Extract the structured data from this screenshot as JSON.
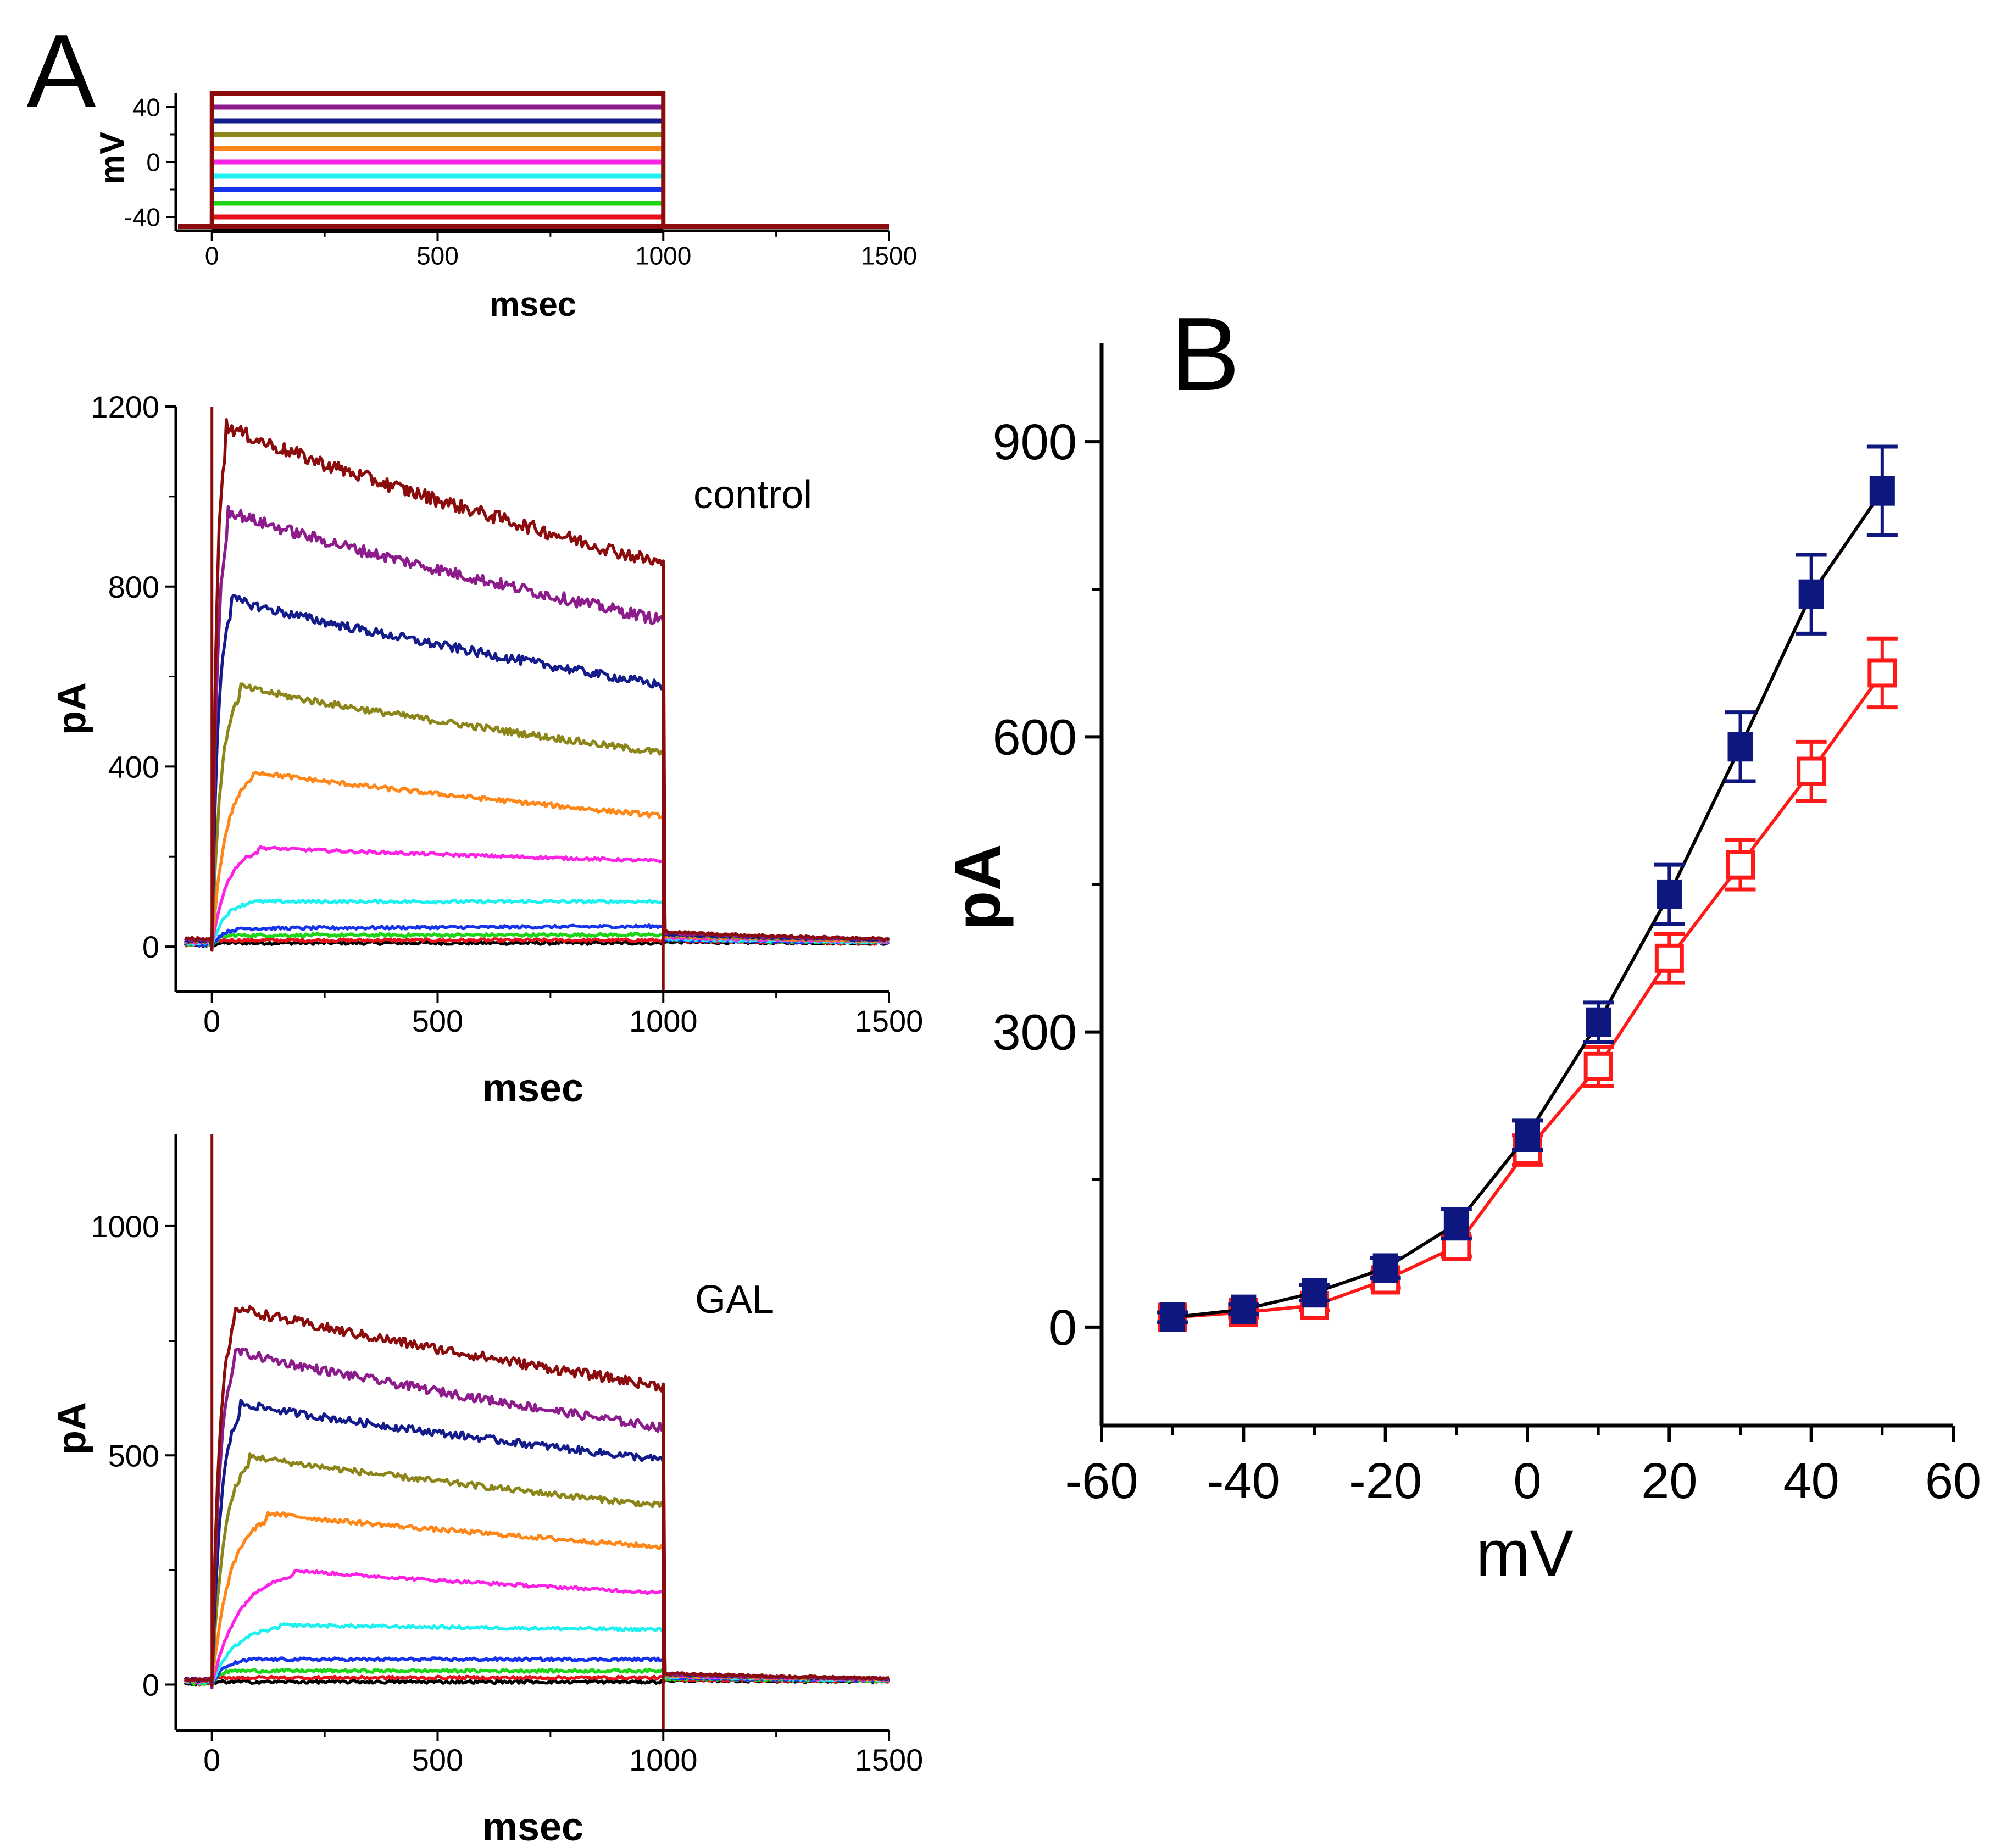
{
  "panel_labels": {
    "a": "A",
    "b": "B"
  },
  "colors": {
    "m50": "#000000",
    "m40": "#e6111d",
    "m30": "#1bd516",
    "m20": "#1433ea",
    "m10": "#1ff1f1",
    "p0": "#fb23e4",
    "p10": "#ff8719",
    "p20": "#8c861a",
    "p30": "#141b8a",
    "p40": "#8c1c8b",
    "p50": "#8b0c0c",
    "control": "#0e1680",
    "gal": "#ff1a1a",
    "control_line": "#000000"
  },
  "chart_data": [
    {
      "id": "protocol",
      "type": "line",
      "title": "",
      "xlabel": "msec",
      "ylabel": "mV",
      "xlim": [
        -80,
        1500
      ],
      "ylim": [
        -50,
        50
      ],
      "xticks": [
        0,
        500,
        1000,
        1500
      ],
      "yticks": [
        -40,
        0,
        40
      ],
      "holding_mV": -50,
      "step_start_ms": 0,
      "step_end_ms": 1000,
      "steps_mV": [
        -50,
        -40,
        -30,
        -20,
        -10,
        0,
        10,
        20,
        30,
        40,
        50
      ]
    },
    {
      "id": "control-traces",
      "type": "line",
      "title": "",
      "annotation": "control",
      "xlabel": "msec",
      "ylabel": "pA",
      "xlim": [
        -80,
        1500
      ],
      "ylim": [
        -100,
        1200
      ],
      "xticks": [
        0,
        500,
        1000,
        1500
      ],
      "yticks": [
        0,
        400,
        800,
        1200
      ],
      "step_start_ms": 0,
      "step_end_ms": 1000,
      "series": [
        {
          "name": "-50 mV",
          "color": "m50",
          "peak_ms": 20,
          "peak": 8,
          "end": 8,
          "tail": 5
        },
        {
          "name": "-40 mV",
          "color": "m40",
          "peak_ms": 20,
          "peak": 14,
          "end": 14,
          "tail": 8
        },
        {
          "name": "-30 mV",
          "color": "m30",
          "peak_ms": 40,
          "peak": 25,
          "end": 26,
          "tail": 10
        },
        {
          "name": "-20 mV",
          "color": "m20",
          "peak_ms": 60,
          "peak": 40,
          "end": 45,
          "tail": 10
        },
        {
          "name": "-10 mV",
          "color": "m10",
          "peak_ms": 80,
          "peak": 100,
          "end": 100,
          "tail": 12
        },
        {
          "name": "0 mV",
          "color": "p0",
          "peak_ms": 100,
          "peak": 220,
          "end": 190,
          "tail": 15
        },
        {
          "name": "10 mV",
          "color": "p10",
          "peak_ms": 90,
          "peak": 390,
          "end": 290,
          "tail": 18
        },
        {
          "name": "20 mV",
          "color": "p20",
          "peak_ms": 60,
          "peak": 580,
          "end": 430,
          "tail": 20
        },
        {
          "name": "30 mV",
          "color": "p30",
          "peak_ms": 40,
          "peak": 775,
          "end": 580,
          "tail": 22
        },
        {
          "name": "40 mV",
          "color": "p40",
          "peak_ms": 35,
          "peak": 970,
          "end": 725,
          "tail": 25
        },
        {
          "name": "50 mV",
          "color": "p50",
          "peak_ms": 30,
          "peak": 1160,
          "end": 850,
          "tail": 28
        }
      ]
    },
    {
      "id": "gal-traces",
      "type": "line",
      "title": "",
      "annotation": "GAL",
      "xlabel": "msec",
      "ylabel": "pA",
      "xlim": [
        -80,
        1500
      ],
      "ylim": [
        -100,
        1200
      ],
      "xticks": [
        0,
        500,
        1000,
        1500
      ],
      "yticks": [
        0,
        500,
        1000
      ],
      "step_start_ms": 0,
      "step_end_ms": 1000,
      "series": [
        {
          "name": "-50 mV",
          "color": "m50",
          "peak_ms": 20,
          "peak": 6,
          "end": 6,
          "tail": 4
        },
        {
          "name": "-40 mV",
          "color": "m40",
          "peak_ms": 20,
          "peak": 15,
          "end": 15,
          "tail": 6
        },
        {
          "name": "-30 mV",
          "color": "m30",
          "peak_ms": 40,
          "peak": 30,
          "end": 30,
          "tail": 8
        },
        {
          "name": "-20 mV",
          "color": "m20",
          "peak_ms": 80,
          "peak": 55,
          "end": 55,
          "tail": 10
        },
        {
          "name": "-10 mV",
          "color": "m10",
          "peak_ms": 150,
          "peak": 130,
          "end": 120,
          "tail": 12
        },
        {
          "name": "0 mV",
          "color": "p0",
          "peak_ms": 180,
          "peak": 250,
          "end": 200,
          "tail": 14
        },
        {
          "name": "10 mV",
          "color": "p10",
          "peak_ms": 120,
          "peak": 375,
          "end": 300,
          "tail": 15
        },
        {
          "name": "20 mV",
          "color": "p20",
          "peak_ms": 80,
          "peak": 500,
          "end": 390,
          "tail": 16
        },
        {
          "name": "30 mV",
          "color": "p30",
          "peak_ms": 60,
          "peak": 615,
          "end": 490,
          "tail": 17
        },
        {
          "name": "40 mV",
          "color": "p40",
          "peak_ms": 50,
          "peak": 730,
          "end": 560,
          "tail": 18
        },
        {
          "name": "50 mV",
          "color": "p50",
          "peak_ms": 50,
          "peak": 825,
          "end": 650,
          "tail": 20
        }
      ]
    },
    {
      "id": "iv-curve",
      "type": "line",
      "title": "",
      "xlabel": "mV",
      "ylabel": "pA",
      "xlim": [
        -60,
        60
      ],
      "ylim": [
        -100,
        1000
      ],
      "xticks": [
        -60,
        -40,
        -20,
        0,
        20,
        40,
        60
      ],
      "xtick_labels": [
        "-60",
        "-40",
        "-20",
        "0",
        "20",
        "40",
        "60"
      ],
      "yticks": [
        0,
        300,
        600,
        900
      ],
      "ytick_labels": [
        "0",
        "300",
        "600",
        "900"
      ],
      "x": [
        -50,
        -40,
        -30,
        -20,
        -10,
        0,
        10,
        20,
        30,
        40,
        50
      ],
      "series": [
        {
          "name": "control",
          "marker": "filled-square",
          "color": "control",
          "line_color": "control_line",
          "values": [
            10,
            18,
            35,
            60,
            105,
            195,
            310,
            440,
            590,
            745,
            850
          ],
          "errors": [
            5,
            5,
            8,
            10,
            15,
            15,
            20,
            30,
            35,
            40,
            45
          ]
        },
        {
          "name": "GAL",
          "marker": "open-square",
          "color": "gal",
          "line_color": "gal",
          "values": [
            10,
            15,
            22,
            48,
            82,
            180,
            265,
            375,
            470,
            565,
            665
          ],
          "errors": [
            5,
            5,
            5,
            8,
            10,
            15,
            20,
            25,
            25,
            30,
            35
          ]
        }
      ]
    }
  ]
}
